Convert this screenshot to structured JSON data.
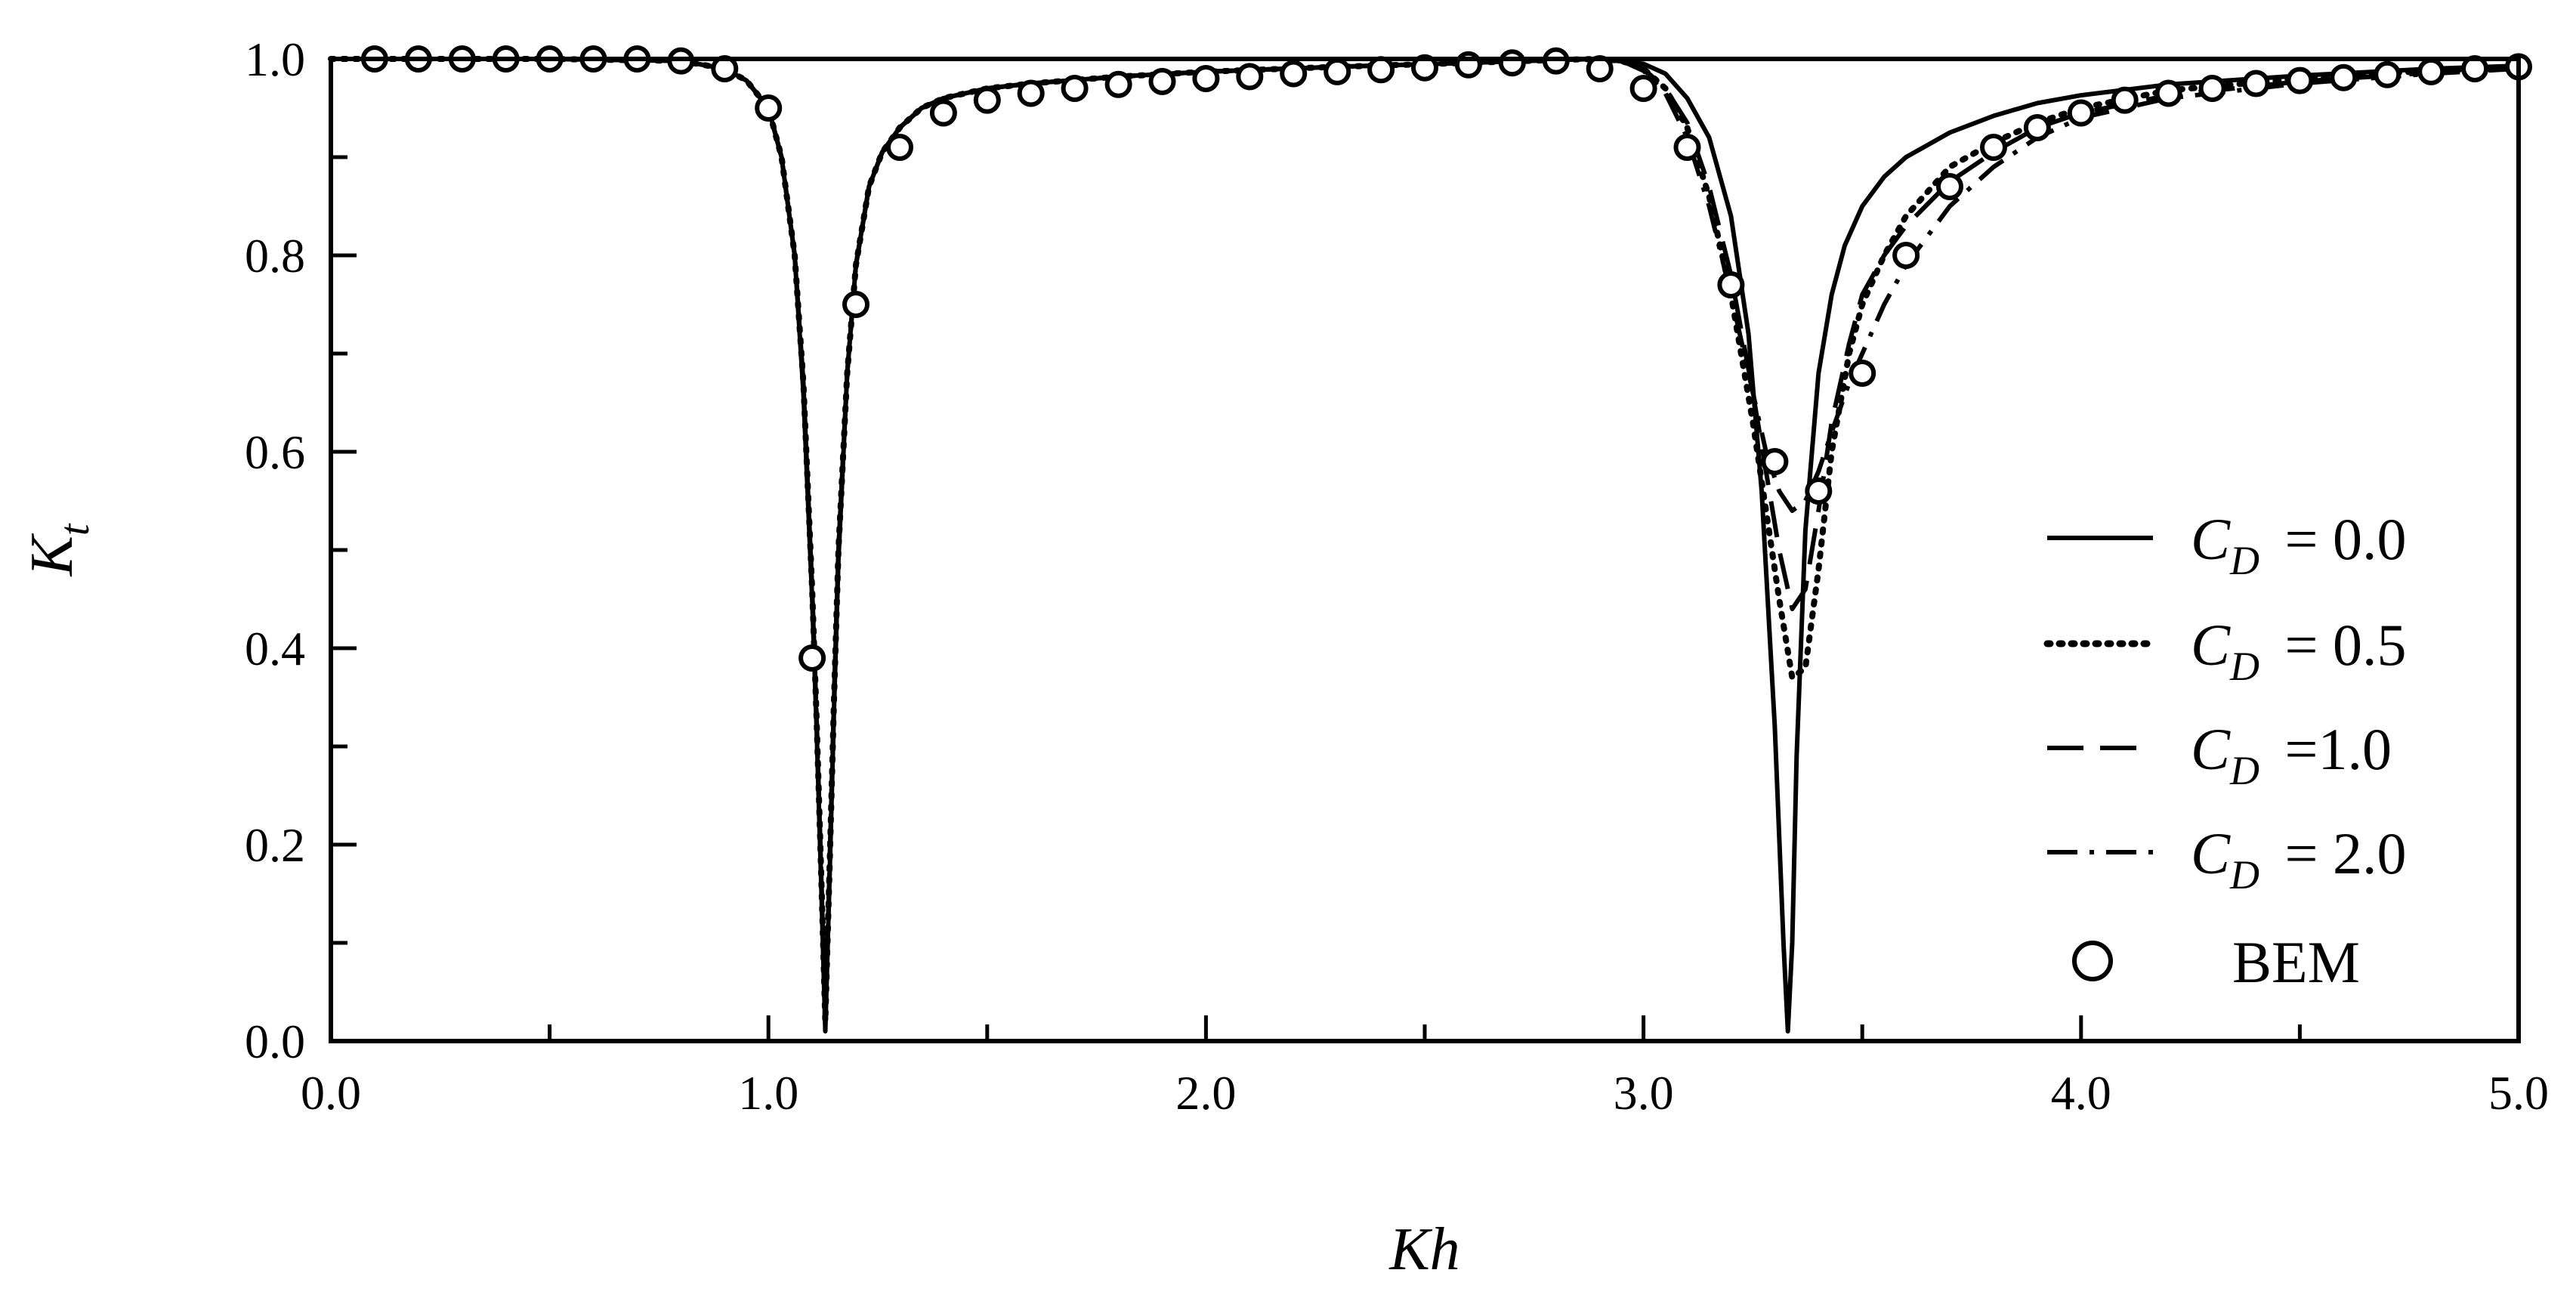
{
  "chart_data": {
    "type": "line",
    "title": "",
    "xlabel": "Kh",
    "ylabel_main": "K",
    "ylabel_sub": "t",
    "xlim": [
      0.0,
      5.0
    ],
    "ylim": [
      0.0,
      1.0
    ],
    "x_ticks": [
      0.0,
      1.0,
      2.0,
      3.0,
      4.0,
      5.0
    ],
    "x_tick_labels": [
      "0.0",
      "1.0",
      "2.0",
      "3.0",
      "4.0",
      "5.0"
    ],
    "y_ticks": [
      0.0,
      0.2,
      0.4,
      0.6,
      0.8,
      1.0
    ],
    "y_tick_labels": [
      "0.0",
      "0.2",
      "0.4",
      "0.6",
      "0.8",
      "1.0"
    ],
    "grid": false,
    "legend_position": "bottom-right",
    "colors": {
      "line": "#000000",
      "background": "#ffffff"
    },
    "series": [
      {
        "name_var": "C",
        "name_sub": "D",
        "name_val": "= 0.0",
        "style": "solid",
        "x": [
          0.0,
          0.5,
          0.8,
          0.9,
          0.95,
          1.0,
          1.03,
          1.06,
          1.08,
          1.1,
          1.11,
          1.12,
          1.13,
          1.14,
          1.15,
          1.16,
          1.18,
          1.2,
          1.23,
          1.26,
          1.3,
          1.35,
          1.4,
          1.5,
          1.6,
          1.8,
          2.0,
          2.3,
          2.6,
          2.8,
          2.9,
          3.0,
          3.05,
          3.1,
          3.15,
          3.2,
          3.24,
          3.27,
          3.3,
          3.32,
          3.33,
          3.34,
          3.35,
          3.37,
          3.4,
          3.43,
          3.46,
          3.5,
          3.55,
          3.6,
          3.7,
          3.8,
          3.9,
          4.0,
          4.2,
          4.5,
          4.8,
          5.0
        ],
        "y": [
          1.0,
          1.0,
          0.998,
          0.99,
          0.978,
          0.95,
          0.9,
          0.8,
          0.66,
          0.45,
          0.32,
          0.17,
          0.01,
          0.17,
          0.34,
          0.49,
          0.68,
          0.79,
          0.87,
          0.905,
          0.93,
          0.95,
          0.96,
          0.97,
          0.975,
          0.982,
          0.987,
          0.992,
          0.996,
          0.999,
          1.0,
          0.995,
          0.985,
          0.96,
          0.92,
          0.84,
          0.72,
          0.56,
          0.32,
          0.1,
          0.01,
          0.1,
          0.29,
          0.52,
          0.68,
          0.76,
          0.81,
          0.85,
          0.88,
          0.9,
          0.925,
          0.942,
          0.955,
          0.963,
          0.974,
          0.983,
          0.99,
          0.993
        ]
      },
      {
        "name_var": "C",
        "name_sub": "D",
        "name_val": "= 0.5",
        "style": "dotted",
        "x": [
          0.0,
          0.5,
          0.8,
          0.9,
          0.95,
          1.0,
          1.03,
          1.06,
          1.08,
          1.1,
          1.11,
          1.12,
          1.13,
          1.14,
          1.15,
          1.16,
          1.18,
          1.2,
          1.23,
          1.26,
          1.3,
          1.35,
          1.4,
          1.5,
          1.6,
          1.8,
          2.0,
          2.3,
          2.6,
          2.8,
          2.9,
          2.95,
          3.0,
          3.05,
          3.1,
          3.15,
          3.2,
          3.25,
          3.28,
          3.31,
          3.34,
          3.37,
          3.4,
          3.43,
          3.47,
          3.5,
          3.55,
          3.6,
          3.7,
          3.8,
          3.9,
          4.0,
          4.2,
          4.5,
          4.8,
          5.0
        ],
        "y": [
          1.0,
          1.0,
          0.998,
          0.99,
          0.978,
          0.95,
          0.9,
          0.8,
          0.67,
          0.46,
          0.33,
          0.18,
          0.02,
          0.18,
          0.35,
          0.5,
          0.68,
          0.79,
          0.87,
          0.905,
          0.93,
          0.95,
          0.96,
          0.97,
          0.975,
          0.982,
          0.987,
          0.992,
          0.996,
          0.999,
          1.0,
          0.998,
          0.99,
          0.97,
          0.93,
          0.86,
          0.76,
          0.63,
          0.54,
          0.45,
          0.37,
          0.38,
          0.48,
          0.6,
          0.7,
          0.75,
          0.8,
          0.84,
          0.89,
          0.915,
          0.935,
          0.95,
          0.968,
          0.98,
          0.988,
          0.992
        ]
      },
      {
        "name_var": "C",
        "name_sub": "D",
        "name_val": "=1.0",
        "style": "dashed",
        "x": [
          0.0,
          0.5,
          0.8,
          0.9,
          0.95,
          1.0,
          1.03,
          1.06,
          1.08,
          1.1,
          1.11,
          1.12,
          1.13,
          1.14,
          1.15,
          1.16,
          1.18,
          1.2,
          1.23,
          1.26,
          1.3,
          1.35,
          1.4,
          1.5,
          1.6,
          1.8,
          2.0,
          2.3,
          2.6,
          2.8,
          2.9,
          2.95,
          3.0,
          3.05,
          3.1,
          3.15,
          3.2,
          3.25,
          3.28,
          3.31,
          3.34,
          3.37,
          3.4,
          3.43,
          3.47,
          3.5,
          3.55,
          3.6,
          3.7,
          3.8,
          3.9,
          4.0,
          4.2,
          4.5,
          4.8,
          5.0
        ],
        "y": [
          1.0,
          1.0,
          0.998,
          0.99,
          0.978,
          0.95,
          0.9,
          0.8,
          0.67,
          0.46,
          0.33,
          0.18,
          0.02,
          0.18,
          0.35,
          0.5,
          0.68,
          0.79,
          0.87,
          0.905,
          0.93,
          0.95,
          0.96,
          0.97,
          0.975,
          0.982,
          0.987,
          0.992,
          0.996,
          0.999,
          1.0,
          0.998,
          0.99,
          0.97,
          0.935,
          0.87,
          0.78,
          0.66,
          0.58,
          0.5,
          0.44,
          0.46,
          0.54,
          0.63,
          0.71,
          0.76,
          0.8,
          0.83,
          0.875,
          0.905,
          0.93,
          0.945,
          0.963,
          0.977,
          0.986,
          0.991
        ]
      },
      {
        "name_var": "C",
        "name_sub": "D",
        "name_val": "= 2.0",
        "style": "dashdot",
        "x": [
          0.0,
          0.5,
          0.8,
          0.9,
          0.95,
          1.0,
          1.03,
          1.06,
          1.08,
          1.1,
          1.11,
          1.12,
          1.13,
          1.14,
          1.15,
          1.16,
          1.18,
          1.2,
          1.23,
          1.26,
          1.3,
          1.35,
          1.4,
          1.5,
          1.6,
          1.8,
          2.0,
          2.3,
          2.6,
          2.8,
          2.9,
          2.95,
          3.0,
          3.05,
          3.1,
          3.15,
          3.2,
          3.25,
          3.28,
          3.31,
          3.34,
          3.37,
          3.4,
          3.43,
          3.47,
          3.5,
          3.55,
          3.6,
          3.7,
          3.8,
          3.9,
          4.0,
          4.2,
          4.5,
          4.8,
          5.0
        ],
        "y": [
          1.0,
          1.0,
          0.998,
          0.99,
          0.978,
          0.95,
          0.9,
          0.8,
          0.67,
          0.46,
          0.33,
          0.18,
          0.02,
          0.18,
          0.35,
          0.5,
          0.68,
          0.79,
          0.87,
          0.905,
          0.93,
          0.95,
          0.96,
          0.97,
          0.975,
          0.982,
          0.987,
          0.992,
          0.996,
          0.999,
          1.0,
          0.998,
          0.988,
          0.965,
          0.92,
          0.85,
          0.76,
          0.66,
          0.6,
          0.56,
          0.54,
          0.55,
          0.58,
          0.62,
          0.67,
          0.7,
          0.75,
          0.79,
          0.85,
          0.89,
          0.92,
          0.94,
          0.96,
          0.975,
          0.985,
          0.99
        ]
      },
      {
        "name": "BEM",
        "style": "markers",
        "x": [
          0.1,
          0.2,
          0.3,
          0.4,
          0.5,
          0.6,
          0.7,
          0.8,
          0.9,
          1.0,
          1.1,
          1.2,
          1.3,
          1.4,
          1.5,
          1.6,
          1.7,
          1.8,
          1.9,
          2.0,
          2.1,
          2.2,
          2.3,
          2.4,
          2.5,
          2.6,
          2.7,
          2.8,
          2.9,
          3.0,
          3.1,
          3.2,
          3.3,
          3.4,
          3.5,
          3.6,
          3.7,
          3.8,
          3.9,
          4.0,
          4.1,
          4.2,
          4.3,
          4.4,
          4.5,
          4.6,
          4.7,
          4.8,
          4.9,
          5.0
        ],
        "y": [
          1.0,
          1.0,
          1.0,
          1.0,
          1.0,
          1.0,
          1.0,
          0.998,
          0.99,
          0.95,
          0.39,
          0.75,
          0.91,
          0.945,
          0.958,
          0.965,
          0.97,
          0.974,
          0.977,
          0.98,
          0.982,
          0.985,
          0.987,
          0.989,
          0.991,
          0.994,
          0.996,
          0.998,
          0.99,
          0.97,
          0.91,
          0.77,
          0.59,
          0.56,
          0.68,
          0.8,
          0.87,
          0.91,
          0.93,
          0.945,
          0.958,
          0.965,
          0.97,
          0.975,
          0.978,
          0.981,
          0.984,
          0.987,
          0.99,
          0.992
        ]
      }
    ]
  }
}
